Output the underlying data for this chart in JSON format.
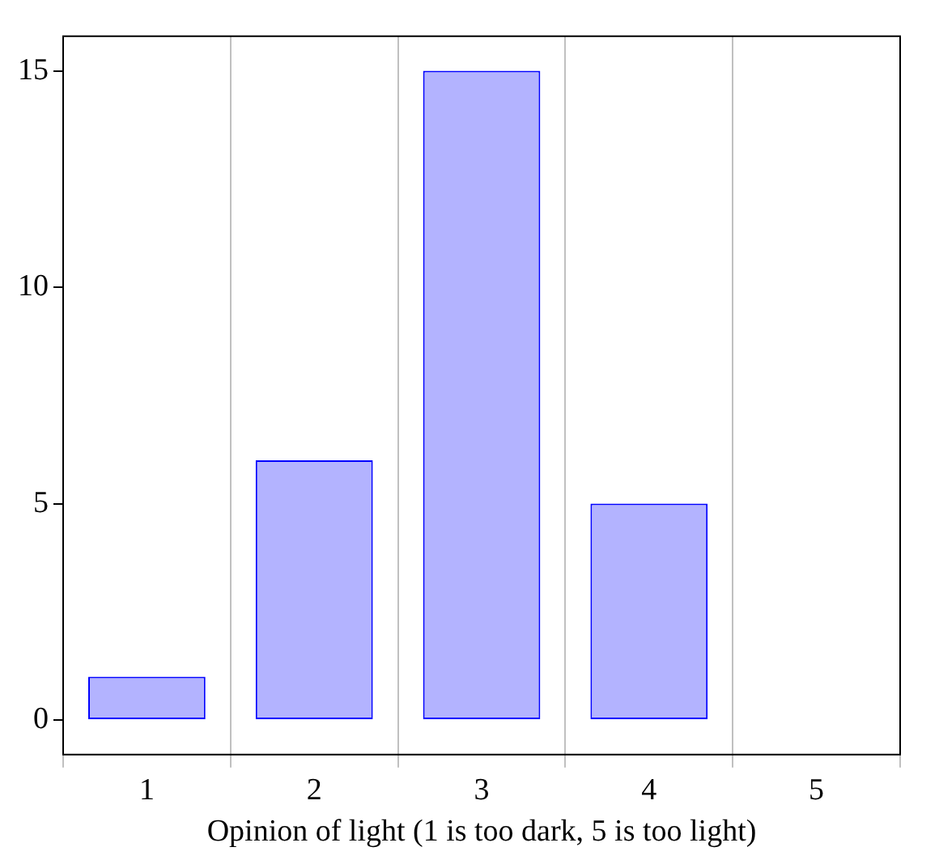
{
  "chart_data": {
    "type": "bar",
    "xlabel": "Opinion of light (1 is too dark, 5 is too light)",
    "categories": [
      "1",
      "2",
      "3",
      "4",
      "5"
    ],
    "values": [
      1,
      6,
      15,
      5,
      0
    ],
    "color": "#b3b3ff",
    "ylim": [
      -0.8,
      15.8
    ],
    "yticks": [
      0,
      5,
      10,
      15
    ],
    "grid": "x"
  }
}
